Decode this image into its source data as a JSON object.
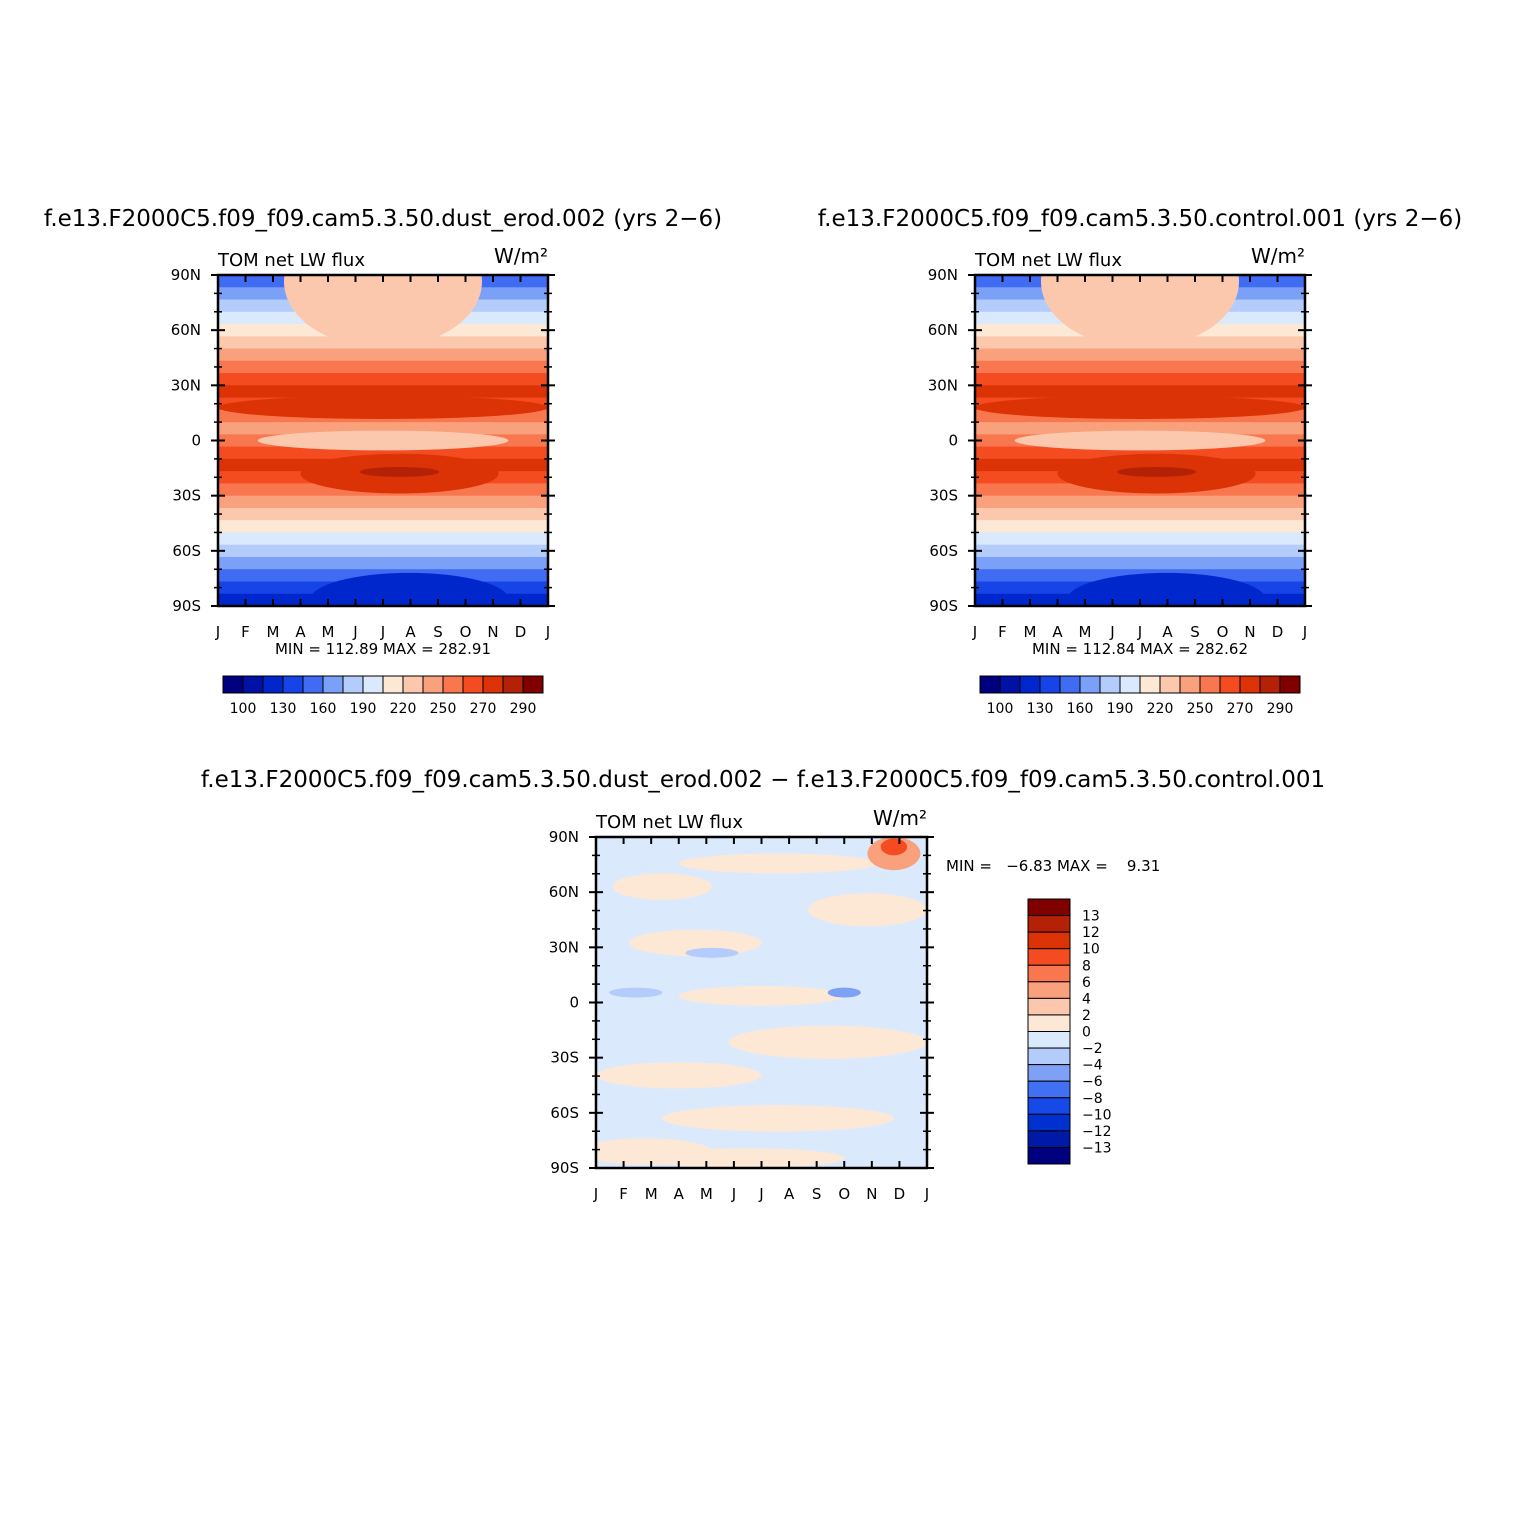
{
  "colors": {
    "abs_scale": [
      "#00007f",
      "#0011a6",
      "#0027cc",
      "#1744e6",
      "#3f6cf2",
      "#7aa0f7",
      "#b3ccfb",
      "#dbe9fd",
      "#fde8d6",
      "#fcc8ad",
      "#f9a07c",
      "#f8774f",
      "#f44b20",
      "#dc3306",
      "#b42106",
      "#800000"
    ],
    "diff_scale": [
      "#00007f",
      "#001aa8",
      "#0031cf",
      "#1749e8",
      "#4170f2",
      "#7ea1f6",
      "#b3ccfb",
      "#dbe9fd",
      "#fde8d6",
      "#fcc8ad",
      "#f9a07c",
      "#f8774f",
      "#f44b20",
      "#dc3306",
      "#b42106",
      "#800000"
    ]
  },
  "chart_data": [
    {
      "type": "heatmap",
      "title": "f.e13.F2000C5.f09_f09.cam5.3.50.dust_erod.002 (yrs 2−6)",
      "left_label": "TOM net LW flux",
      "units_label": "W/m²",
      "x_tick_labels": [
        "J",
        "F",
        "M",
        "A",
        "M",
        "J",
        "J",
        "A",
        "S",
        "O",
        "N",
        "D",
        "J"
      ],
      "y_tick_labels": [
        "90N",
        "60N",
        "30N",
        "0",
        "30S",
        "60S",
        "90S"
      ],
      "ylim": [
        -90,
        90
      ],
      "stats_text": "MIN = 112.89  MAX = 282.91",
      "colorbar": {
        "orientation": "horizontal",
        "labels": [
          "100",
          "130",
          "160",
          "190",
          "220",
          "250",
          "270",
          "290"
        ],
        "levels": [
          100,
          110,
          120,
          130,
          140,
          150,
          160,
          170,
          180,
          190,
          200,
          210,
          220,
          230,
          240,
          250,
          260,
          270,
          280,
          290
        ]
      }
    },
    {
      "type": "heatmap",
      "title": "f.e13.F2000C5.f09_f09.cam5.3.50.control.001 (yrs 2−6)",
      "left_label": "TOM net LW flux",
      "units_label": "W/m²",
      "x_tick_labels": [
        "J",
        "F",
        "M",
        "A",
        "M",
        "J",
        "J",
        "A",
        "S",
        "O",
        "N",
        "D",
        "J"
      ],
      "y_tick_labels": [
        "90N",
        "60N",
        "30N",
        "0",
        "30S",
        "60S",
        "90S"
      ],
      "ylim": [
        -90,
        90
      ],
      "stats_text": "MIN = 112.84  MAX = 282.62",
      "colorbar": {
        "orientation": "horizontal",
        "labels": [
          "100",
          "130",
          "160",
          "190",
          "220",
          "250",
          "270",
          "290"
        ],
        "levels": [
          100,
          110,
          120,
          130,
          140,
          150,
          160,
          170,
          180,
          190,
          200,
          210,
          220,
          230,
          240,
          250,
          260,
          270,
          280,
          290
        ]
      }
    },
    {
      "type": "heatmap",
      "title": "f.e13.F2000C5.f09_f09.cam5.3.50.dust_erod.002 − f.e13.F2000C5.f09_f09.cam5.3.50.control.001",
      "left_label": "TOM net LW flux",
      "units_label": "W/m²",
      "x_tick_labels": [
        "J",
        "F",
        "M",
        "A",
        "M",
        "J",
        "J",
        "A",
        "S",
        "O",
        "N",
        "D",
        "J"
      ],
      "y_tick_labels": [
        "90N",
        "60N",
        "30N",
        "0",
        "30S",
        "60S",
        "90S"
      ],
      "ylim": [
        -90,
        90
      ],
      "stats_text": "MIN =   −6.83 MAX =    9.31",
      "colorbar": {
        "orientation": "vertical",
        "labels": [
          "13",
          "12",
          "10",
          "8",
          "6",
          "4",
          "2",
          "0",
          "−2",
          "−4",
          "−6",
          "−8",
          "−10",
          "−12",
          "−13"
        ],
        "levels": [
          -13,
          -12,
          -10,
          -8,
          -6,
          -4,
          -2,
          0,
          2,
          4,
          6,
          8,
          10,
          12,
          13
        ]
      }
    }
  ]
}
